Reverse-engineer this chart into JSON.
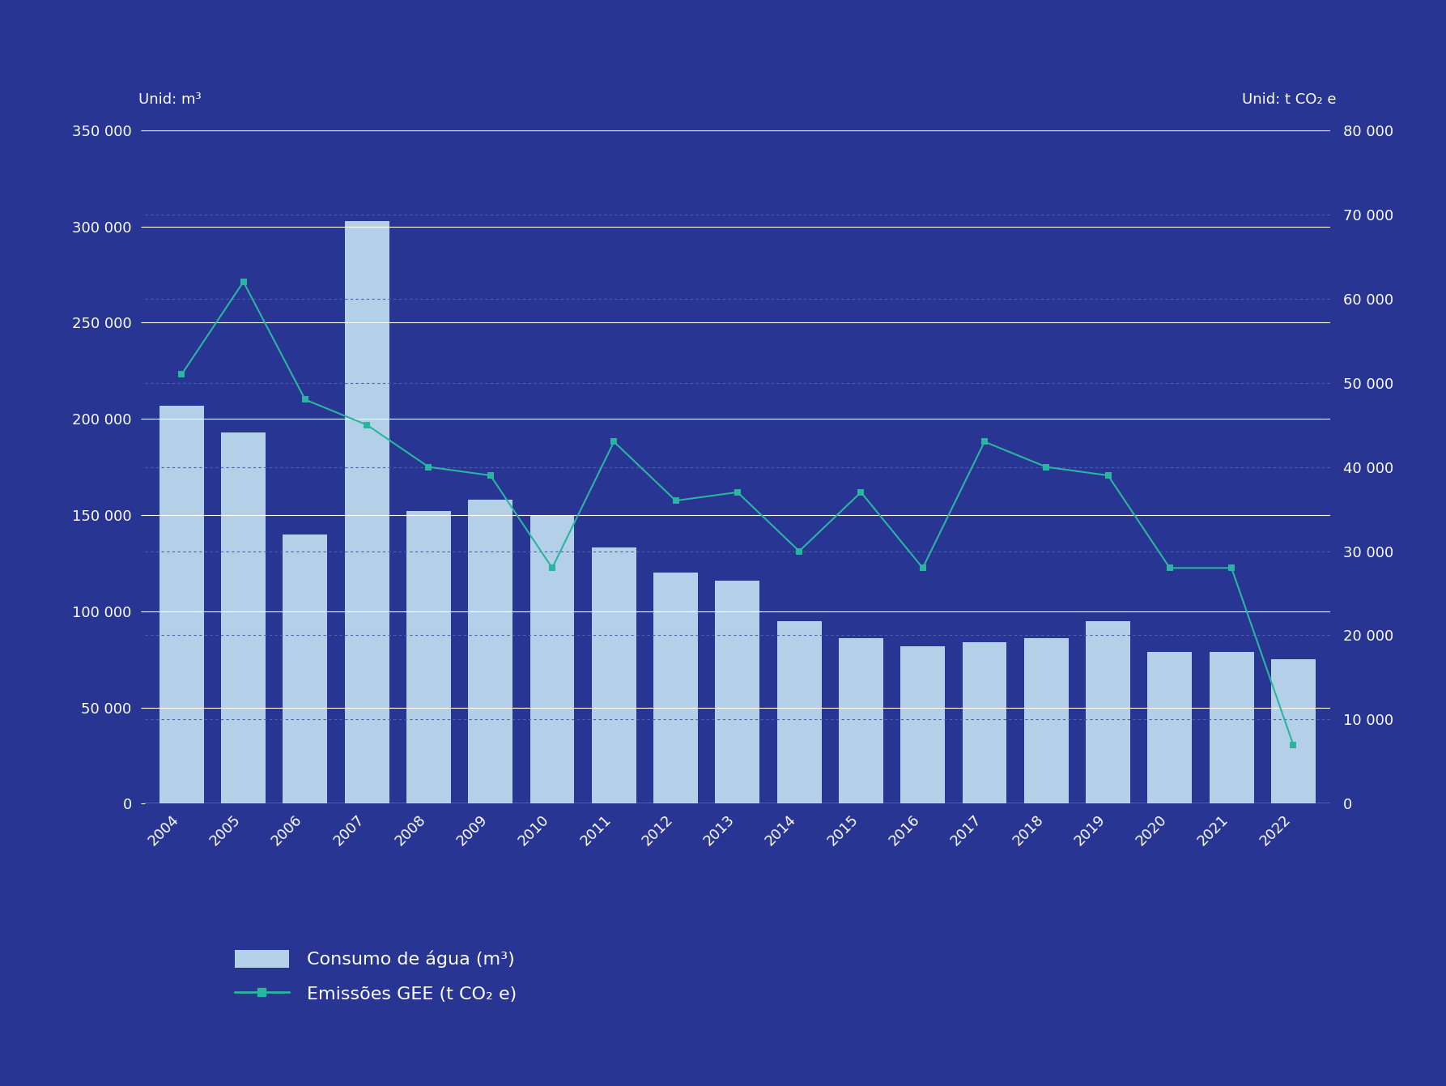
{
  "years": [
    2004,
    2005,
    2006,
    2007,
    2008,
    2009,
    2010,
    2011,
    2012,
    2013,
    2014,
    2015,
    2016,
    2017,
    2018,
    2019,
    2020,
    2021,
    2022
  ],
  "water": [
    207000,
    193000,
    140000,
    303000,
    152000,
    158000,
    150000,
    133000,
    120000,
    116000,
    95000,
    86000,
    82000,
    84000,
    86000,
    95000,
    79000,
    79000,
    75000
  ],
  "gee": [
    51000,
    62000,
    48000,
    45000,
    40000,
    39000,
    28000,
    43000,
    36000,
    37000,
    30000,
    37000,
    28000,
    43000,
    40000,
    39000,
    28000,
    28000,
    7000
  ],
  "background_color": "#283593",
  "bar_color": "#b3d0e8",
  "line_color": "#2ab5a0",
  "marker_color": "#2ab5a0",
  "text_color": "#ffffff",
  "grid_major_color": "#ffffff",
  "grid_minor_color": "#5060aa",
  "left_ylabel": "Unid: m³",
  "right_ylabel": "Unid: t CO₂ e",
  "ylim_left": [
    0,
    350000
  ],
  "ylim_right": [
    0,
    80000
  ],
  "yticks_left": [
    0,
    50000,
    100000,
    150000,
    200000,
    250000,
    300000,
    350000
  ],
  "yticks_right": [
    0,
    10000,
    20000,
    30000,
    40000,
    50000,
    60000,
    70000,
    80000
  ],
  "dotted_left_vals": [
    43750,
    87500,
    131250,
    175000,
    218750,
    262500,
    306250
  ],
  "legend_water": "Consumo de água (m³)",
  "legend_gee_line": "Emissões GEE (t CO₂ e)"
}
